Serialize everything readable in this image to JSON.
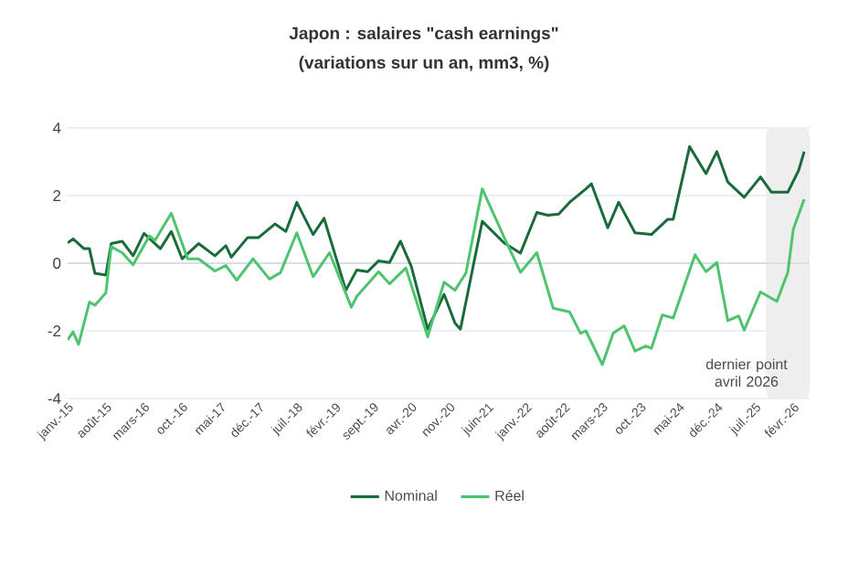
{
  "chart_data": {
    "type": "line",
    "title": "Japon : salaires \"cash earnings\"",
    "subtitle": "(variations sur un an, mm3, %)",
    "annotations": [
      "dernier point avril 2026"
    ],
    "xlim": [
      "2015-01",
      "2026-05"
    ],
    "xticks": [
      {
        "value": "2015-01",
        "label": "janv.-15"
      },
      {
        "value": "2015-08",
        "label": "août-15"
      },
      {
        "value": "2016-03",
        "label": "mars-16"
      },
      {
        "value": "2016-10",
        "label": "oct.-16"
      },
      {
        "value": "2017-05",
        "label": "mai-17"
      },
      {
        "value": "2017-12",
        "label": "déc.-17"
      },
      {
        "value": "2018-07",
        "label": "juil.-18"
      },
      {
        "value": "2019-02",
        "label": "févr.-19"
      },
      {
        "value": "2019-09",
        "label": "sept.-19"
      },
      {
        "value": "2020-04",
        "label": "avr.-20"
      },
      {
        "value": "2020-11",
        "label": "nov.-20"
      },
      {
        "value": "2021-06",
        "label": "juin-21"
      },
      {
        "value": "2022-01",
        "label": "janv.-22"
      },
      {
        "value": "2022-08",
        "label": "août-22"
      },
      {
        "value": "2023-03",
        "label": "mars-23"
      },
      {
        "value": "2023-10",
        "label": "oct.-23"
      },
      {
        "value": "2024-05",
        "label": "mai-24"
      },
      {
        "value": "2024-12",
        "label": "déc.-24"
      },
      {
        "value": "2025-07",
        "label": "juil.-25"
      },
      {
        "value": "2026-02",
        "label": "févr.-26"
      }
    ],
    "ylim": [
      -4,
      4
    ],
    "yticks": [
      -4,
      -2,
      0,
      2,
      4
    ],
    "grid": "y",
    "legend": "bottom",
    "bands": [
      {
        "axis": "x",
        "from": "2025-09",
        "to": "2026-05",
        "color": "#eeeeee"
      }
    ],
    "series": [
      {
        "name": "Nominal",
        "color": "#1a6b3c",
        "x": [
          "2015-01",
          "2015-02",
          "2015-04",
          "2015-05",
          "2015-06",
          "2015-08",
          "2015-09",
          "2015-11",
          "2016-01",
          "2016-03",
          "2016-06",
          "2016-08",
          "2016-10",
          "2017-01",
          "2017-04",
          "2017-06",
          "2017-07",
          "2017-10",
          "2017-12",
          "2018-03",
          "2018-05",
          "2018-07",
          "2018-10",
          "2018-12",
          "2019-04",
          "2019-06",
          "2019-08",
          "2019-10",
          "2019-12",
          "2020-02",
          "2020-04",
          "2020-07",
          "2020-10",
          "2020-12",
          "2021-01",
          "2021-05",
          "2021-09",
          "2021-12",
          "2022-03",
          "2022-05",
          "2022-07",
          "2022-09",
          "2022-12",
          "2023-01",
          "2023-04",
          "2023-06",
          "2023-09",
          "2023-12",
          "2024-03",
          "2024-04",
          "2024-07",
          "2024-10",
          "2024-12",
          "2025-02",
          "2025-05",
          "2025-08",
          "2025-10",
          "2026-01",
          "2026-03",
          "2026-04"
        ],
        "values": [
          0.6,
          0.72,
          0.43,
          0.43,
          -0.3,
          -0.35,
          0.58,
          0.65,
          0.22,
          0.88,
          0.43,
          0.94,
          0.13,
          0.58,
          0.22,
          0.52,
          0.18,
          0.76,
          0.76,
          1.16,
          0.94,
          1.8,
          0.85,
          1.33,
          -0.8,
          -0.2,
          -0.25,
          0.07,
          0.02,
          0.65,
          -0.1,
          -1.95,
          -0.92,
          -1.77,
          -1.95,
          1.24,
          0.6,
          0.3,
          1.5,
          1.42,
          1.45,
          1.8,
          2.2,
          2.35,
          1.05,
          1.8,
          0.9,
          0.85,
          1.3,
          1.3,
          3.45,
          2.65,
          3.3,
          2.4,
          1.95,
          2.55,
          2.1,
          2.1,
          2.75,
          3.3
        ]
      },
      {
        "name": "Réel",
        "color": "#4fc46e",
        "x": [
          "2015-01",
          "2015-02",
          "2015-03",
          "2015-05",
          "2015-06",
          "2015-08",
          "2015-09",
          "2015-11",
          "2016-01",
          "2016-04",
          "2016-05",
          "2016-08",
          "2016-11",
          "2017-01",
          "2017-04",
          "2017-06",
          "2017-08",
          "2017-11",
          "2018-02",
          "2018-04",
          "2018-07",
          "2018-10",
          "2019-01",
          "2019-05",
          "2019-06",
          "2019-10",
          "2019-12",
          "2020-03",
          "2020-04",
          "2020-07",
          "2020-10",
          "2020-12",
          "2021-02",
          "2021-05",
          "2021-09",
          "2021-12",
          "2022-03",
          "2022-06",
          "2022-09",
          "2022-11",
          "2022-12",
          "2023-03",
          "2023-05",
          "2023-07",
          "2023-09",
          "2023-11",
          "2023-12",
          "2024-02",
          "2024-04",
          "2024-08",
          "2024-10",
          "2024-12",
          "2025-02",
          "2025-04",
          "2025-05",
          "2025-08",
          "2025-11",
          "2026-01",
          "2026-02",
          "2026-04"
        ],
        "values": [
          -2.27,
          -2.03,
          -2.4,
          -1.15,
          -1.24,
          -0.88,
          0.49,
          0.31,
          -0.05,
          0.81,
          0.67,
          1.48,
          0.13,
          0.13,
          -0.23,
          -0.07,
          -0.5,
          0.13,
          -0.47,
          -0.28,
          0.9,
          -0.4,
          0.31,
          -1.3,
          -0.98,
          -0.25,
          -0.61,
          -0.14,
          -0.65,
          -2.18,
          -0.56,
          -0.8,
          -0.29,
          2.2,
          0.77,
          -0.27,
          0.31,
          -1.33,
          -1.44,
          -2.07,
          -2.0,
          -3.0,
          -2.07,
          -1.85,
          -2.6,
          -2.45,
          -2.52,
          -1.53,
          -1.62,
          0.25,
          -0.25,
          0.02,
          -1.7,
          -1.56,
          -1.98,
          -0.85,
          -1.13,
          -0.27,
          1.0,
          1.89
        ]
      }
    ]
  }
}
